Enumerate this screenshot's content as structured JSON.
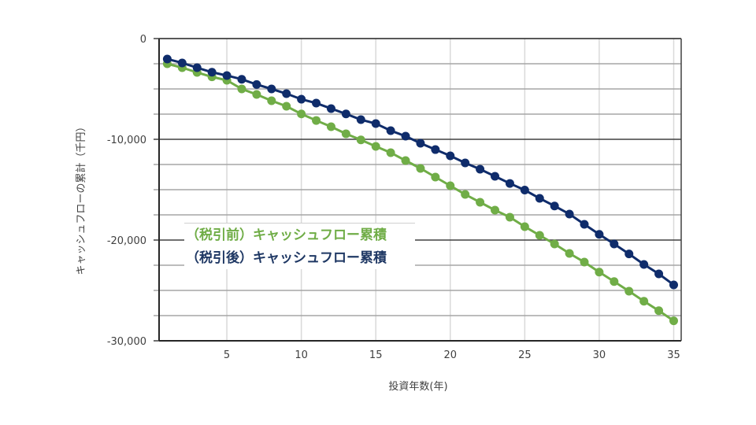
{
  "chart_data": {
    "type": "line",
    "title": "",
    "xlabel": "投資年数(年)",
    "ylabel": "キャッシュフローの累計（千円）",
    "xlim": [
      1,
      35
    ],
    "ylim": [
      -30000,
      0
    ],
    "xticks": [
      5,
      10,
      15,
      20,
      25,
      30,
      35
    ],
    "yticks": [
      0,
      -10000,
      -20000,
      -30000
    ],
    "ytick_labels": [
      "0",
      "-10,000",
      "-20,000",
      "-30,000"
    ],
    "minor_gridline_step": 2500,
    "grid": true,
    "legend_position": "inside-left-lower",
    "x": [
      1,
      2,
      3,
      4,
      5,
      6,
      7,
      8,
      9,
      10,
      11,
      12,
      13,
      14,
      15,
      16,
      17,
      18,
      19,
      20,
      21,
      22,
      23,
      24,
      25,
      26,
      27,
      28,
      29,
      30,
      31,
      32,
      33,
      34,
      35
    ],
    "series": [
      {
        "name": "（税引前）キャッシュフロー累積",
        "color": "#70AD47",
        "values": [
          -2500,
          -2890,
          -3360,
          -3800,
          -4140,
          -5000,
          -5550,
          -6170,
          -6720,
          -7480,
          -8130,
          -8750,
          -9450,
          -10060,
          -10700,
          -11330,
          -12110,
          -12890,
          -13750,
          -14610,
          -15470,
          -16250,
          -17030,
          -17730,
          -18670,
          -19530,
          -20390,
          -21330,
          -22190,
          -23180,
          -24120,
          -25080,
          -26070,
          -27010,
          -28020
        ]
      },
      {
        "name": "（税引後）キャッシュフロー累積",
        "color": "#0F2C6B",
        "values": [
          -2030,
          -2420,
          -2890,
          -3340,
          -3670,
          -4040,
          -4560,
          -5000,
          -5470,
          -6020,
          -6410,
          -6950,
          -7480,
          -8050,
          -8440,
          -9140,
          -9690,
          -10390,
          -11020,
          -11640,
          -12340,
          -12970,
          -13670,
          -14380,
          -15040,
          -15860,
          -16620,
          -17420,
          -18440,
          -19430,
          -20390,
          -21380,
          -22420,
          -23360,
          -24450
        ]
      }
    ]
  },
  "legend": {
    "items": [
      {
        "label": "（税引前）キャッシュフロー累積",
        "color": "#70AD47"
      },
      {
        "label": "（税引後）キャッシュフロー累積",
        "color": "#1F3864"
      }
    ]
  }
}
